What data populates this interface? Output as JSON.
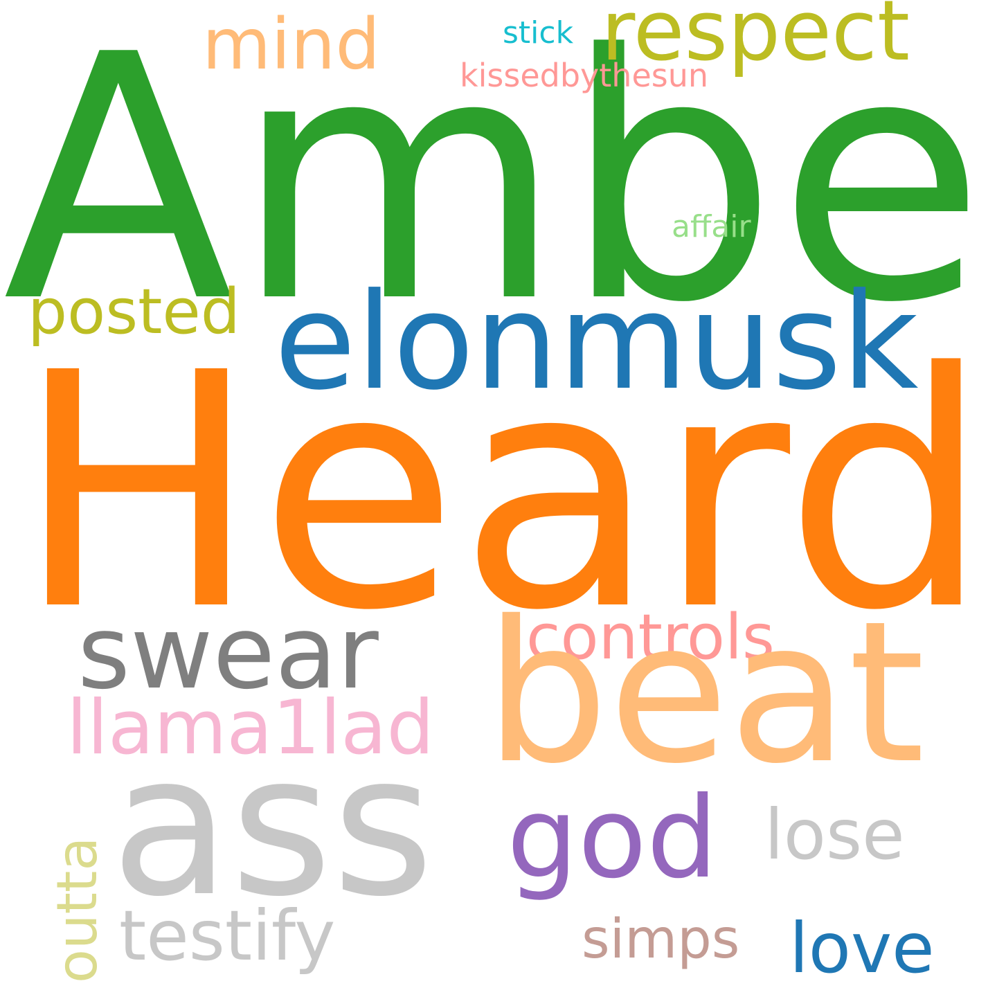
{
  "words": {
    "amber": {
      "text": "Amber",
      "color": "#2ca02c"
    },
    "heard": {
      "text": "Heard",
      "color": "#ff7f0e"
    },
    "elonmusk": {
      "text": "elonmusk",
      "color": "#1f77b4"
    },
    "beat": {
      "text": "beat",
      "color": "#ffbb78"
    },
    "ass": {
      "text": "ass",
      "color": "#c7c7c7"
    },
    "swear": {
      "text": "swear",
      "color": "#7f7f7f"
    },
    "god": {
      "text": "god",
      "color": "#9467bd"
    },
    "respect": {
      "text": "respect",
      "color": "#bcbd22"
    },
    "mind": {
      "text": "mind",
      "color": "#ffbb78"
    },
    "posted": {
      "text": "posted",
      "color": "#bcbd22"
    },
    "controls": {
      "text": "controls",
      "color": "#ff9896"
    },
    "llama": {
      "text": "llama1lad",
      "color": "#f7b6d2"
    },
    "lose": {
      "text": "lose",
      "color": "#c7c7c7"
    },
    "testify": {
      "text": "testify",
      "color": "#c7c7c7"
    },
    "simps": {
      "text": "simps",
      "color": "#c49c94"
    },
    "love": {
      "text": "love",
      "color": "#1f77b4"
    },
    "outta": {
      "text": "outta",
      "color": "#dbdb8d"
    },
    "stick": {
      "text": "stick",
      "color": "#17becf"
    },
    "kissed": {
      "text": "kissedbythesun",
      "color": "#ff9896"
    },
    "affair": {
      "text": "affair",
      "color": "#98df8a"
    }
  }
}
